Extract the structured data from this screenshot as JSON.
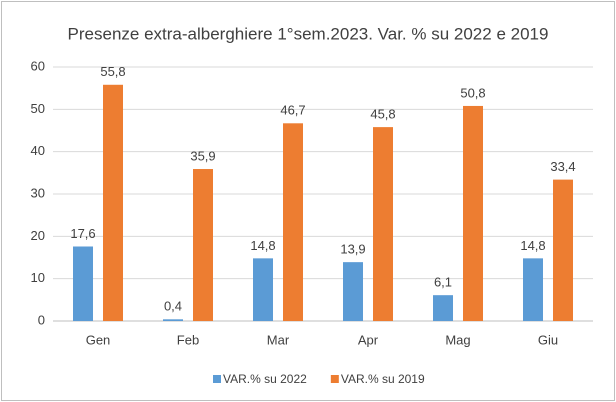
{
  "chart_data": {
    "type": "bar",
    "title": "Presenze extra-alberghiere 1°sem.2023. Var. % su 2022 e 2019",
    "categories": [
      "Gen",
      "Feb",
      "Mar",
      "Apr",
      "Mag",
      "Giu"
    ],
    "series": [
      {
        "name": "VAR.% su 2022",
        "color": "#5b9bd5",
        "values": [
          17.6,
          0.4,
          14.8,
          13.9,
          6.1,
          14.8
        ],
        "value_labels": [
          "17,6",
          "0,4",
          "14,8",
          "13,9",
          "6,1",
          "14,8"
        ]
      },
      {
        "name": "VAR.% su 2019",
        "color": "#ed7d31",
        "values": [
          55.8,
          35.9,
          46.7,
          45.8,
          50.8,
          33.4
        ],
        "value_labels": [
          "55,8",
          "35,9",
          "46,7",
          "45,8",
          "50,8",
          "33,4"
        ]
      }
    ],
    "ylim": [
      0,
      60
    ],
    "yticks": [
      0,
      10,
      20,
      30,
      40,
      50,
      60
    ],
    "grid": true,
    "legend": "bottom"
  }
}
